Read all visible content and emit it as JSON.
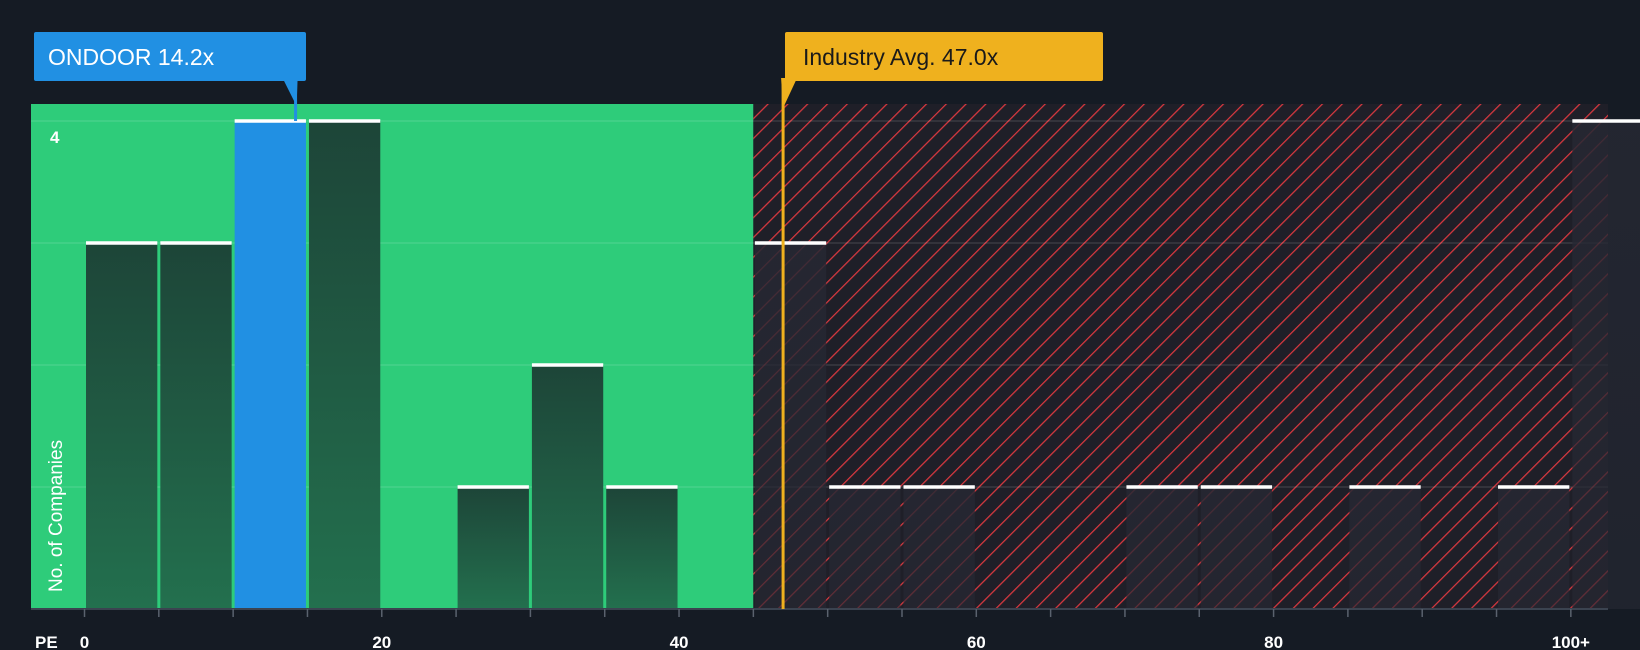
{
  "chart_data": {
    "type": "bar",
    "xlabel": "PE",
    "ylabel": "No. of Companies",
    "x_ticks": [
      "0",
      "20",
      "40",
      "60",
      "80",
      "100+"
    ],
    "y_ticks": [
      "4"
    ],
    "ylim": [
      0,
      4
    ],
    "xlim": [
      -3.6,
      102.5
    ],
    "bin_width": 5,
    "bins": [
      {
        "start": 0,
        "count": 3
      },
      {
        "start": 5,
        "count": 3
      },
      {
        "start": 10,
        "count": 4,
        "highlight": true
      },
      {
        "start": 15,
        "count": 4
      },
      {
        "start": 25,
        "count": 1
      },
      {
        "start": 30,
        "count": 2
      },
      {
        "start": 35,
        "count": 1
      },
      {
        "start": 45,
        "count": 3
      },
      {
        "start": 50,
        "count": 1
      },
      {
        "start": 55,
        "count": 1
      },
      {
        "start": 70,
        "count": 1
      },
      {
        "start": 75,
        "count": 1
      },
      {
        "start": 85,
        "count": 1
      },
      {
        "start": 95,
        "count": 1
      },
      {
        "start": 100,
        "count": 4
      }
    ],
    "company": {
      "label": "ONDOOR 14.2x",
      "value": 14.2,
      "color": "#2190e3"
    },
    "industry": {
      "label": "Industry Avg. 47.0x",
      "value": 47.0,
      "color": "#efb11e"
    },
    "fair_zone_end": 45,
    "colors": {
      "background": "#151b24",
      "fair_zone": "#2ecc7a",
      "bar": "#1f4a3e",
      "hatch": "#d9383f",
      "highlight": "#2190e3"
    }
  }
}
